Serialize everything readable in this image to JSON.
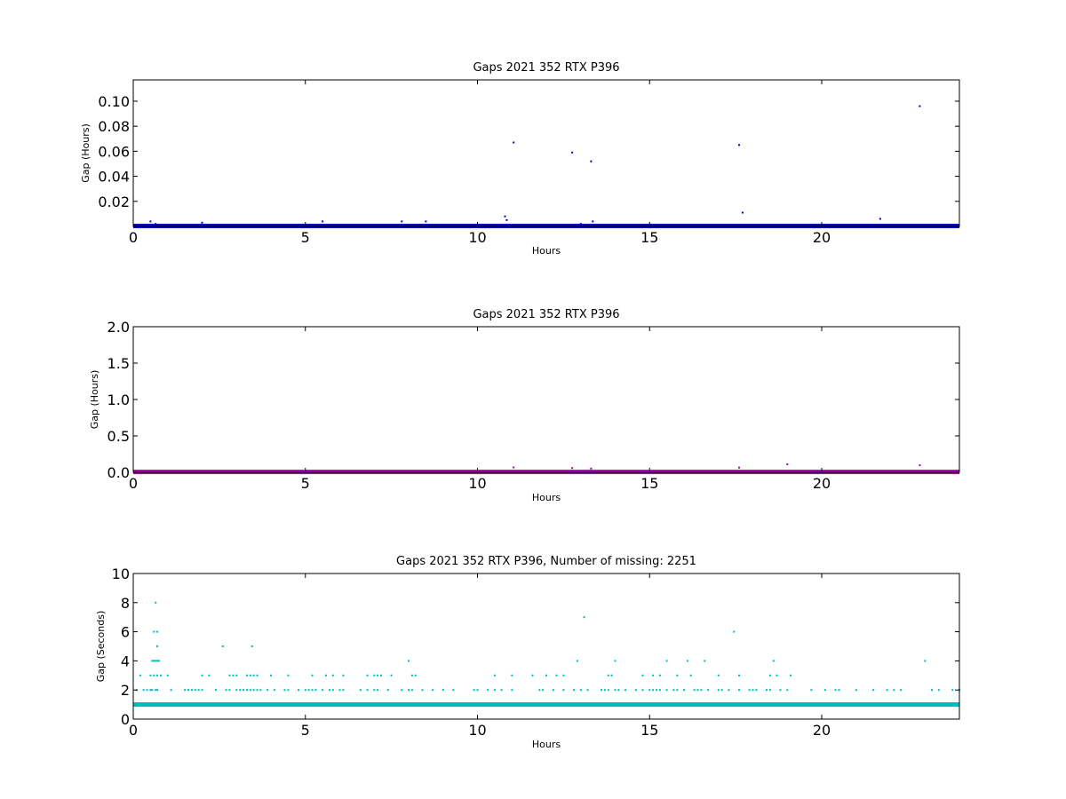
{
  "chart_data": [
    {
      "type": "scatter",
      "title": "Gaps 2021 352 RTX  P396",
      "xlabel": "Hours",
      "ylabel": "Gap (Hours)",
      "xlim": [
        0,
        24
      ],
      "ylim": [
        0,
        0.117
      ],
      "xticks": [
        0,
        5,
        10,
        15,
        20
      ],
      "yticks": [
        0.02,
        0.04,
        0.06,
        0.08,
        0.1
      ],
      "ytick_labels": [
        "0.02",
        "0.04",
        "0.06",
        "0.08",
        "0.10"
      ],
      "grid": false,
      "color": "#0000cc",
      "baseline": 0.0003,
      "points": [
        [
          0.5,
          0.004
        ],
        [
          0.65,
          0.002
        ],
        [
          2.0,
          0.003
        ],
        [
          5.5,
          0.004
        ],
        [
          7.8,
          0.004
        ],
        [
          8.5,
          0.004
        ],
        [
          10.8,
          0.008
        ],
        [
          10.85,
          0.005
        ],
        [
          11.05,
          0.067
        ],
        [
          12.75,
          0.059
        ],
        [
          13.0,
          0.002
        ],
        [
          13.3,
          0.052
        ],
        [
          13.35,
          0.004
        ],
        [
          17.4,
          0.001
        ],
        [
          17.6,
          0.065
        ],
        [
          17.7,
          0.011
        ],
        [
          19.0,
          0.001
        ],
        [
          21.7,
          0.006
        ],
        [
          22.85,
          0.096
        ]
      ]
    },
    {
      "type": "scatter",
      "title": "Gaps 2021 352 RTX  P396",
      "xlabel": "Hours",
      "ylabel": "Gap (Hours)",
      "xlim": [
        0,
        24
      ],
      "ylim": [
        0,
        2.0
      ],
      "xticks": [
        0,
        5,
        10,
        15,
        20
      ],
      "yticks": [
        0.0,
        0.5,
        1.0,
        1.5,
        2.0
      ],
      "ytick_labels": [
        "0.0",
        "0.5",
        "1.0",
        "1.5",
        "2.0"
      ],
      "grid": false,
      "color": "#aa00aa",
      "baseline": 0.005,
      "points": [
        [
          11.05,
          0.067
        ],
        [
          12.75,
          0.059
        ],
        [
          13.3,
          0.052
        ],
        [
          17.6,
          0.065
        ],
        [
          19.0,
          0.11
        ],
        [
          22.85,
          0.096
        ]
      ]
    },
    {
      "type": "scatter",
      "title": "Gaps 2021 352 RTX  P396, Number of missing: 2251",
      "xlabel": "Hours",
      "ylabel": "Gap (Seconds)",
      "xlim": [
        0,
        24
      ],
      "ylim": [
        0,
        10
      ],
      "xticks": [
        0,
        5,
        10,
        15,
        20
      ],
      "yticks": [
        0,
        2,
        4,
        6,
        8,
        10
      ],
      "ytick_labels": [
        "0",
        "2",
        "4",
        "6",
        "8",
        "10"
      ],
      "grid": false,
      "color": "#00bbbb",
      "baseline": 1,
      "points": [
        [
          0.65,
          8
        ],
        [
          0.6,
          6
        ],
        [
          0.7,
          6
        ],
        [
          0.7,
          5
        ],
        [
          2.6,
          5
        ],
        [
          3.45,
          5
        ],
        [
          13.1,
          7
        ],
        [
          17.45,
          6
        ],
        [
          0.55,
          4
        ],
        [
          0.6,
          4
        ],
        [
          0.65,
          4
        ],
        [
          0.7,
          4
        ],
        [
          0.75,
          4
        ],
        [
          8.0,
          4
        ],
        [
          12.9,
          4
        ],
        [
          14.0,
          4
        ],
        [
          15.5,
          4
        ],
        [
          16.1,
          4
        ],
        [
          16.6,
          4
        ],
        [
          18.6,
          4
        ],
        [
          23.0,
          4
        ],
        [
          0.2,
          3
        ],
        [
          0.5,
          3
        ],
        [
          0.6,
          3
        ],
        [
          0.7,
          3
        ],
        [
          0.8,
          3
        ],
        [
          1.0,
          3
        ],
        [
          2.0,
          3
        ],
        [
          2.2,
          3
        ],
        [
          2.8,
          3
        ],
        [
          2.9,
          3
        ],
        [
          3.0,
          3
        ],
        [
          3.3,
          3
        ],
        [
          3.4,
          3
        ],
        [
          3.5,
          3
        ],
        [
          3.6,
          3
        ],
        [
          4.0,
          3
        ],
        [
          4.5,
          3
        ],
        [
          5.2,
          3
        ],
        [
          5.6,
          3
        ],
        [
          5.8,
          3
        ],
        [
          6.1,
          3
        ],
        [
          6.8,
          3
        ],
        [
          7.0,
          3
        ],
        [
          7.1,
          3
        ],
        [
          7.2,
          3
        ],
        [
          7.5,
          3
        ],
        [
          8.1,
          3
        ],
        [
          8.2,
          3
        ],
        [
          10.5,
          3
        ],
        [
          11.0,
          3
        ],
        [
          11.6,
          3
        ],
        [
          12.0,
          3
        ],
        [
          12.3,
          3
        ],
        [
          12.5,
          3
        ],
        [
          13.8,
          3
        ],
        [
          13.9,
          3
        ],
        [
          14.8,
          3
        ],
        [
          15.1,
          3
        ],
        [
          15.3,
          3
        ],
        [
          15.8,
          3
        ],
        [
          16.2,
          3
        ],
        [
          17.0,
          3
        ],
        [
          17.6,
          3
        ],
        [
          18.5,
          3
        ],
        [
          18.7,
          3
        ],
        [
          19.1,
          3
        ],
        [
          0.1,
          2
        ],
        [
          0.3,
          2
        ],
        [
          0.4,
          2
        ],
        [
          0.5,
          2
        ],
        [
          0.55,
          2
        ],
        [
          0.65,
          2
        ],
        [
          0.7,
          2
        ],
        [
          1.1,
          2
        ],
        [
          1.5,
          2
        ],
        [
          1.6,
          2
        ],
        [
          1.7,
          2
        ],
        [
          1.8,
          2
        ],
        [
          1.9,
          2
        ],
        [
          2.0,
          2
        ],
        [
          2.4,
          2
        ],
        [
          2.7,
          2
        ],
        [
          2.8,
          2
        ],
        [
          3.0,
          2
        ],
        [
          3.1,
          2
        ],
        [
          3.2,
          2
        ],
        [
          3.3,
          2
        ],
        [
          3.4,
          2
        ],
        [
          3.5,
          2
        ],
        [
          3.6,
          2
        ],
        [
          3.7,
          2
        ],
        [
          3.9,
          2
        ],
        [
          4.1,
          2
        ],
        [
          4.4,
          2
        ],
        [
          4.5,
          2
        ],
        [
          4.8,
          2
        ],
        [
          5.0,
          2
        ],
        [
          5.1,
          2
        ],
        [
          5.2,
          2
        ],
        [
          5.3,
          2
        ],
        [
          5.5,
          2
        ],
        [
          5.7,
          2
        ],
        [
          5.8,
          2
        ],
        [
          6.0,
          2
        ],
        [
          6.1,
          2
        ],
        [
          6.6,
          2
        ],
        [
          6.8,
          2
        ],
        [
          7.0,
          2
        ],
        [
          7.1,
          2
        ],
        [
          7.4,
          2
        ],
        [
          7.8,
          2
        ],
        [
          8.0,
          2
        ],
        [
          8.1,
          2
        ],
        [
          8.4,
          2
        ],
        [
          8.7,
          2
        ],
        [
          9.0,
          2
        ],
        [
          9.3,
          2
        ],
        [
          9.9,
          2
        ],
        [
          10.0,
          2
        ],
        [
          10.3,
          2
        ],
        [
          10.5,
          2
        ],
        [
          10.7,
          2
        ],
        [
          11.0,
          2
        ],
        [
          11.8,
          2
        ],
        [
          11.9,
          2
        ],
        [
          12.2,
          2
        ],
        [
          12.5,
          2
        ],
        [
          12.8,
          2
        ],
        [
          13.0,
          2
        ],
        [
          13.2,
          2
        ],
        [
          13.6,
          2
        ],
        [
          13.7,
          2
        ],
        [
          13.8,
          2
        ],
        [
          14.0,
          2
        ],
        [
          14.1,
          2
        ],
        [
          14.3,
          2
        ],
        [
          14.6,
          2
        ],
        [
          14.8,
          2
        ],
        [
          15.0,
          2
        ],
        [
          15.1,
          2
        ],
        [
          15.2,
          2
        ],
        [
          15.3,
          2
        ],
        [
          15.5,
          2
        ],
        [
          15.7,
          2
        ],
        [
          15.8,
          2
        ],
        [
          16.0,
          2
        ],
        [
          16.3,
          2
        ],
        [
          16.4,
          2
        ],
        [
          16.5,
          2
        ],
        [
          16.7,
          2
        ],
        [
          17.0,
          2
        ],
        [
          17.1,
          2
        ],
        [
          17.3,
          2
        ],
        [
          17.6,
          2
        ],
        [
          17.9,
          2
        ],
        [
          18.0,
          2
        ],
        [
          18.1,
          2
        ],
        [
          18.4,
          2
        ],
        [
          18.5,
          2
        ],
        [
          18.8,
          2
        ],
        [
          19.0,
          2
        ],
        [
          19.7,
          2
        ],
        [
          20.1,
          2
        ],
        [
          20.4,
          2
        ],
        [
          20.5,
          2
        ],
        [
          21.0,
          2
        ],
        [
          21.5,
          2
        ],
        [
          21.9,
          2
        ],
        [
          22.1,
          2
        ],
        [
          22.3,
          2
        ],
        [
          23.2,
          2
        ],
        [
          23.4,
          2
        ],
        [
          23.8,
          2
        ],
        [
          24.0,
          2
        ]
      ]
    }
  ]
}
